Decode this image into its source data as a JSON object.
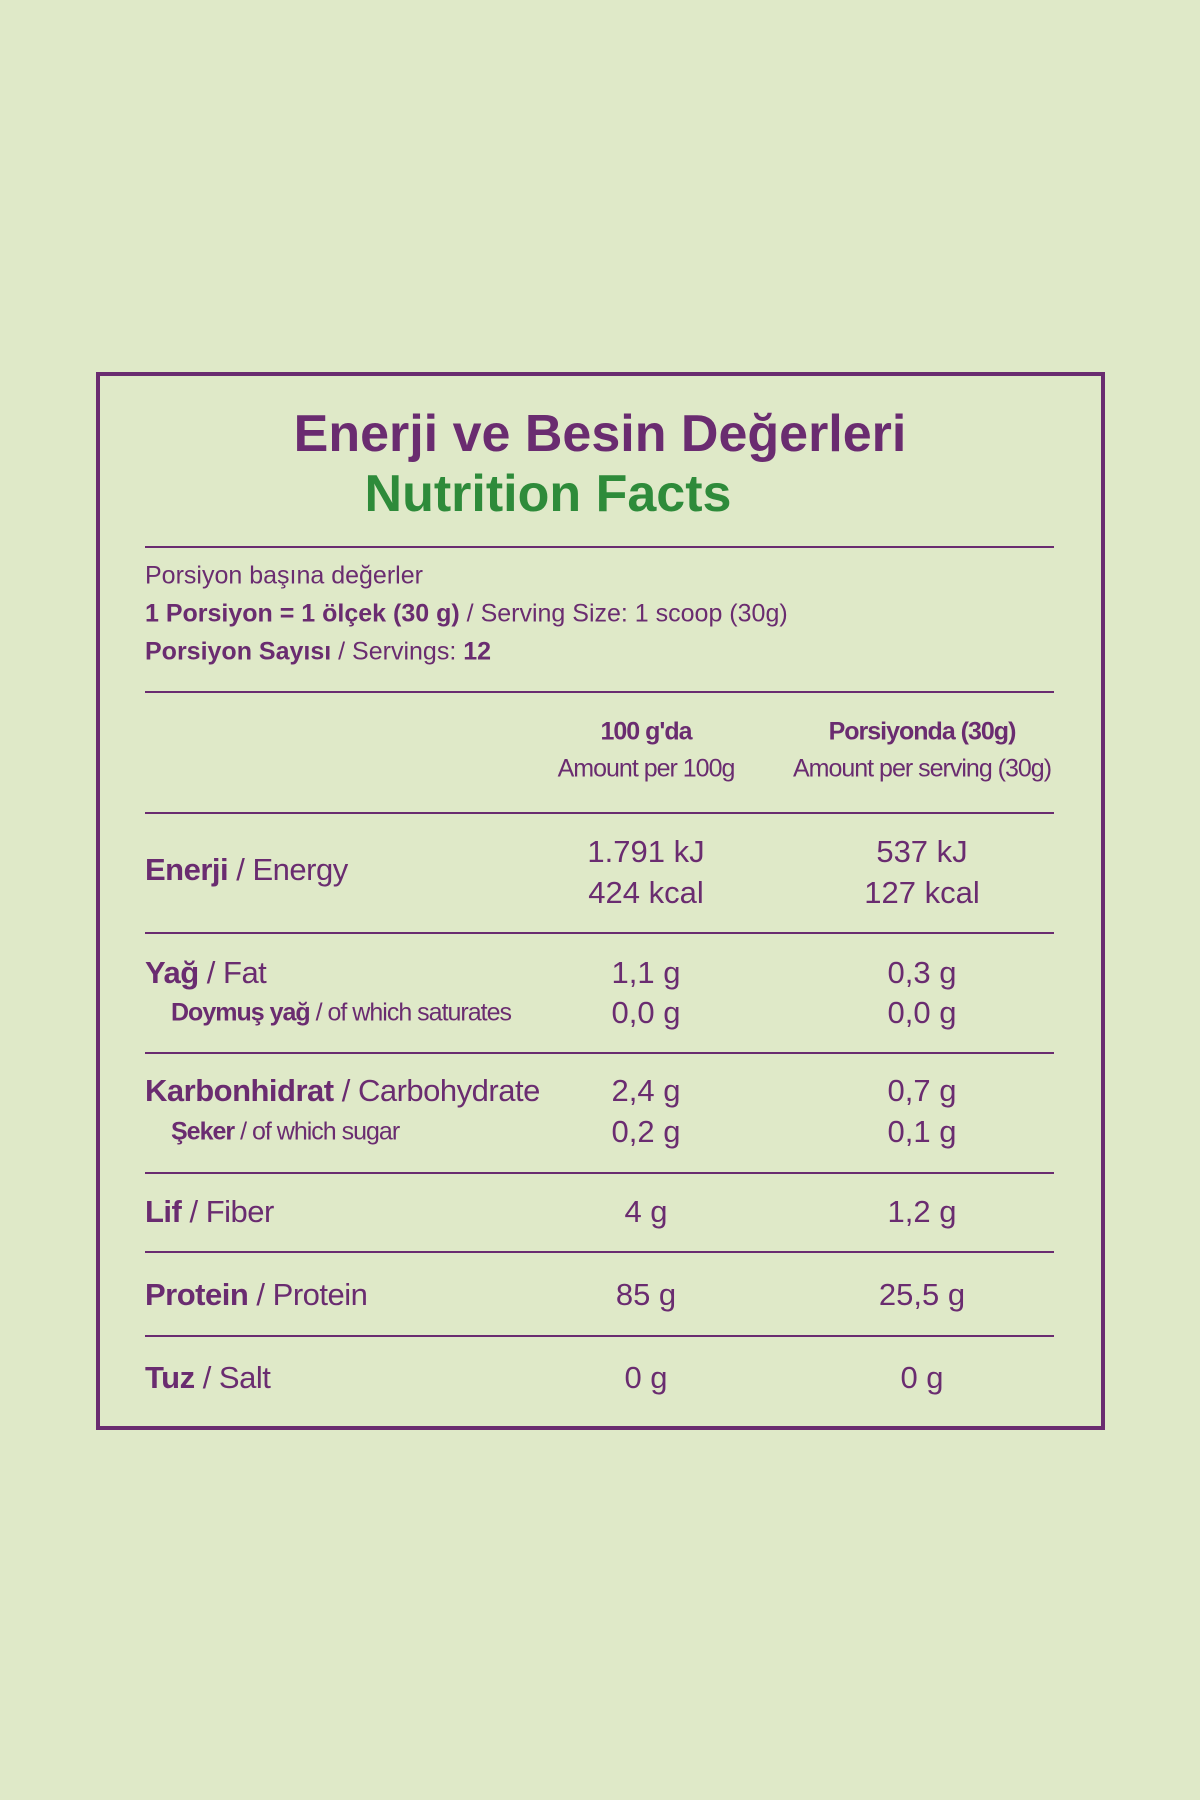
{
  "header": {
    "title": "Enerji ve Besin Değerleri",
    "subtitle": "Nutrition Facts"
  },
  "serving": {
    "line1": "Porsiyon başına değerler",
    "size_tr": "1 Porsiyon = 1 ölçek (30 g)",
    "size_en": "/ Serving Size: 1 scoop (30g)",
    "count_tr": "Porsiyon Sayısı",
    "count_en": "/ Servings:",
    "count": "12"
  },
  "table": {
    "columns": [
      {
        "title": "100 g'da",
        "subtitle": "Amount per 100g"
      },
      {
        "title": "Porsiyonda (30g)",
        "subtitle": "Amount per serving (30g)"
      }
    ],
    "rows": [
      {
        "label": "Enerji",
        "label_en": "/ Energy",
        "values": [
          [
            "1.791 kJ",
            "424 kcal"
          ],
          [
            "537 kJ",
            "127 kcal"
          ]
        ]
      },
      {
        "label": "Yağ",
        "label_en": "/ Fat",
        "values": [
          [
            "1,1 g"
          ],
          [
            "0,3 g"
          ]
        ],
        "sub": {
          "label": "Doymuş yağ",
          "label_en": "/ of which saturates",
          "values": [
            "0,0 g",
            "0,0 g"
          ]
        }
      },
      {
        "label": "Karbonhidrat",
        "label_en": "/ Carbohydrate",
        "values": [
          [
            "2,4 g"
          ],
          [
            "0,7 g"
          ]
        ],
        "sub": {
          "label": "Şeker",
          "label_en": "/ of which sugar",
          "values": [
            "0,2 g",
            "0,1 g"
          ]
        }
      },
      {
        "label": "Lif",
        "label_en": "/ Fiber",
        "values": [
          [
            "4 g"
          ],
          [
            "1,2 g"
          ]
        ]
      },
      {
        "label": "Protein",
        "label_en": "/ Protein",
        "values": [
          [
            "85 g"
          ],
          [
            "25,5 g"
          ]
        ]
      },
      {
        "label": "Tuz",
        "label_en": "/ Salt",
        "values": [
          [
            "0 g"
          ],
          [
            "0 g"
          ]
        ]
      }
    ]
  }
}
